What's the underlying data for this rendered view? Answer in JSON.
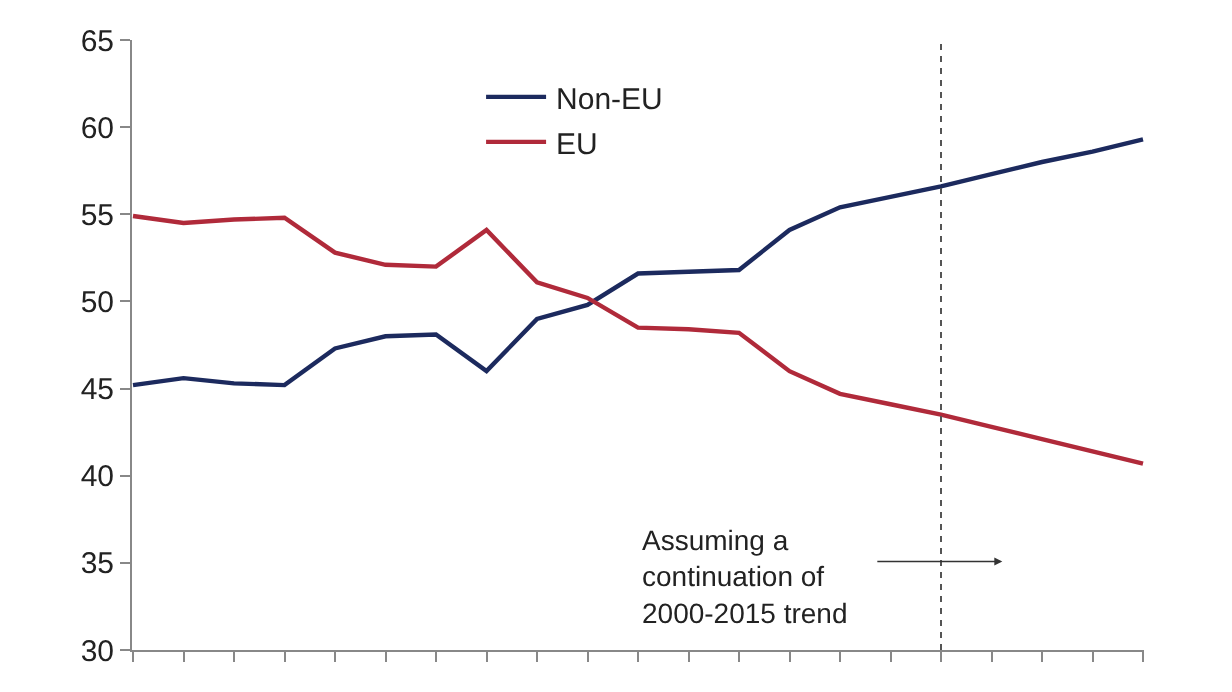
{
  "chart_data": {
    "type": "line",
    "categories": [
      null,
      null,
      null,
      null,
      null,
      null,
      null,
      null,
      null,
      null,
      null,
      null,
      null,
      null,
      null,
      null,
      null,
      null,
      null,
      null,
      null
    ],
    "series": [
      {
        "name": "Non-EU",
        "color": "#1c2a5e",
        "values": [
          45.2,
          45.6,
          45.3,
          45.2,
          47.3,
          48.0,
          48.1,
          46.0,
          49.0,
          49.8,
          51.6,
          51.7,
          51.8,
          54.1,
          55.4,
          56.0,
          56.6,
          57.3,
          58.0,
          58.6,
          59.3
        ]
      },
      {
        "name": "EU",
        "color": "#b02a3a",
        "values": [
          54.9,
          54.5,
          54.7,
          54.8,
          52.8,
          52.1,
          52.0,
          54.1,
          51.1,
          50.2,
          48.5,
          48.4,
          48.2,
          46.0,
          44.7,
          44.1,
          43.5,
          42.8,
          42.1,
          41.4,
          40.7
        ]
      }
    ],
    "ylim": [
      30,
      65
    ],
    "yticks": [
      30,
      35,
      40,
      45,
      50,
      55,
      60,
      65
    ],
    "annotations": [
      "Assuming a\ncontinuation of\n2000-2015 trend"
    ],
    "legend": "top",
    "marker": "none",
    "line_style": "solid"
  }
}
